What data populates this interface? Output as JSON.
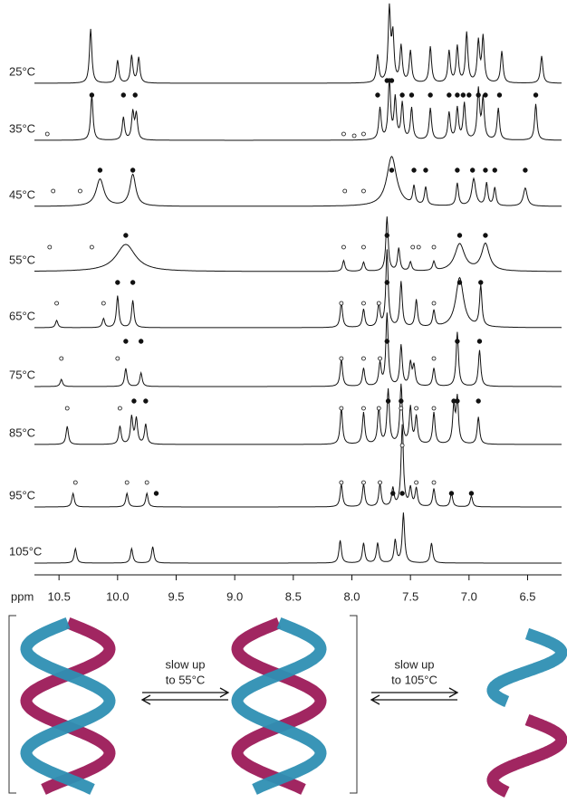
{
  "spectra_panel": {
    "axis": {
      "label": "ppm",
      "xlim": [
        10.71,
        6.21
      ],
      "xticks": [
        10.5,
        {
          "value": 10,
          "label": "10.0"
        },
        9.5,
        {
          "value": 9,
          "label": "9.0"
        },
        8.5,
        {
          "value": 8,
          "label": "8.0"
        },
        7.5,
        {
          "value": 7,
          "label": "7.0"
        },
        6.5
      ]
    },
    "spectra": [
      {
        "label": "25°C",
        "peaks": [
          [
            10.23,
            60
          ],
          [
            10.0,
            25
          ],
          [
            9.88,
            30
          ],
          [
            9.82,
            28
          ],
          [
            7.78,
            30
          ],
          [
            7.68,
            80
          ],
          [
            7.65,
            50
          ],
          [
            7.58,
            40
          ],
          [
            7.5,
            35
          ],
          [
            7.33,
            40
          ],
          [
            7.17,
            35
          ],
          [
            7.1,
            40
          ],
          [
            7.02,
            55
          ],
          [
            6.92,
            45
          ],
          [
            6.88,
            50
          ],
          [
            6.72,
            35
          ],
          [
            6.38,
            30
          ]
        ],
        "filled": [],
        "open": []
      },
      {
        "label": "35°C",
        "peaks": [
          [
            10.22,
            50
          ],
          [
            9.95,
            25
          ],
          [
            9.87,
            30
          ],
          [
            9.84,
            28
          ],
          [
            7.76,
            35
          ],
          [
            7.68,
            65
          ],
          [
            7.63,
            45
          ],
          [
            7.57,
            40
          ],
          [
            7.49,
            35
          ],
          [
            7.33,
            35
          ],
          [
            7.17,
            30
          ],
          [
            7.1,
            35
          ],
          [
            7.04,
            40
          ],
          [
            6.92,
            55
          ],
          [
            6.88,
            45
          ],
          [
            6.75,
            35
          ],
          [
            6.43,
            40
          ]
        ],
        "filled": [
          [
            10.22,
            50
          ],
          [
            9.95,
            50
          ],
          [
            9.85,
            50
          ],
          [
            7.78,
            50
          ],
          [
            7.7,
            66
          ],
          [
            7.66,
            66
          ],
          [
            7.57,
            50
          ],
          [
            7.49,
            50
          ],
          [
            7.33,
            50
          ],
          [
            7.17,
            50
          ],
          [
            7.1,
            50
          ],
          [
            7.05,
            50
          ],
          [
            7.0,
            50
          ],
          [
            6.92,
            50
          ],
          [
            6.86,
            50
          ],
          [
            6.74,
            50
          ],
          [
            6.43,
            50
          ]
        ],
        "open": [
          [
            10.6,
            7
          ],
          [
            8.07,
            7
          ],
          [
            7.98,
            5
          ],
          [
            7.9,
            7
          ]
        ]
      },
      {
        "label": "45°C",
        "peaks": [
          [
            10.15,
            30,
            0.04
          ],
          [
            9.87,
            35,
            0.03
          ],
          [
            7.66,
            55,
            0.05
          ],
          [
            7.47,
            20
          ],
          [
            7.37,
            20
          ],
          [
            7.1,
            25
          ],
          [
            6.96,
            30,
            0.02
          ],
          [
            6.85,
            25
          ],
          [
            6.78,
            20
          ],
          [
            6.52,
            20,
            0.02
          ]
        ],
        "filled": [
          [
            10.15,
            40
          ],
          [
            9.87,
            40
          ],
          [
            7.66,
            40
          ],
          [
            7.47,
            40
          ],
          [
            7.37,
            40
          ],
          [
            7.1,
            40
          ],
          [
            6.97,
            40
          ],
          [
            6.86,
            40
          ],
          [
            6.78,
            40
          ],
          [
            6.52,
            40
          ]
        ],
        "open": [
          [
            10.55,
            17
          ],
          [
            10.32,
            17
          ],
          [
            8.06,
            17
          ],
          [
            7.9,
            17
          ]
        ]
      },
      {
        "label": "55°C",
        "peaks": [
          [
            9.93,
            30,
            0.1
          ],
          [
            8.07,
            12
          ],
          [
            7.9,
            10
          ],
          [
            7.7,
            60
          ],
          [
            7.6,
            25
          ],
          [
            7.5,
            10
          ],
          [
            7.3,
            10
          ],
          [
            7.08,
            30,
            0.05
          ],
          [
            6.86,
            30,
            0.04
          ]
        ],
        "filled": [
          [
            9.93,
            40
          ],
          [
            7.7,
            40
          ],
          [
            7.08,
            40
          ],
          [
            6.86,
            40
          ]
        ],
        "open": [
          [
            10.58,
            27
          ],
          [
            10.22,
            27
          ],
          [
            8.07,
            27
          ],
          [
            7.9,
            27
          ],
          [
            7.48,
            27
          ],
          [
            7.43,
            27
          ],
          [
            7.3,
            27
          ]
        ]
      },
      {
        "label": "65°C",
        "peaks": [
          [
            10.52,
            8
          ],
          [
            10.12,
            10
          ],
          [
            10.0,
            35
          ],
          [
            9.87,
            30
          ],
          [
            8.09,
            28
          ],
          [
            7.9,
            20
          ],
          [
            7.77,
            25
          ],
          [
            7.7,
            85
          ],
          [
            7.58,
            50
          ],
          [
            7.45,
            30
          ],
          [
            7.3,
            18
          ],
          [
            7.08,
            55,
            0.04
          ],
          [
            6.9,
            45
          ]
        ],
        "filled": [
          [
            10.0,
            50
          ],
          [
            9.87,
            50
          ],
          [
            7.7,
            50
          ],
          [
            7.08,
            50
          ],
          [
            6.9,
            50
          ]
        ],
        "open": [
          [
            10.52,
            27
          ],
          [
            10.12,
            27
          ],
          [
            8.09,
            27
          ],
          [
            7.9,
            27
          ],
          [
            7.77,
            27
          ],
          [
            7.3,
            27
          ]
        ]
      },
      {
        "label": "75°C",
        "peaks": [
          [
            10.48,
            8
          ],
          [
            9.93,
            20
          ],
          [
            9.8,
            15
          ],
          [
            8.09,
            30
          ],
          [
            7.9,
            20
          ],
          [
            7.76,
            25
          ],
          [
            7.7,
            80
          ],
          [
            7.58,
            45
          ],
          [
            7.5,
            25
          ],
          [
            7.47,
            22
          ],
          [
            7.3,
            20
          ],
          [
            7.1,
            60
          ],
          [
            6.91,
            40
          ]
        ],
        "filled": [
          [
            9.93,
            50
          ],
          [
            9.8,
            50
          ],
          [
            7.7,
            50
          ],
          [
            7.1,
            50
          ],
          [
            6.91,
            50
          ]
        ],
        "open": [
          [
            10.48,
            31
          ],
          [
            10.0,
            31
          ],
          [
            8.09,
            31
          ],
          [
            7.9,
            31
          ],
          [
            7.76,
            31
          ],
          [
            7.3,
            31
          ]
        ]
      },
      {
        "label": "85°C",
        "peaks": [
          [
            10.43,
            20
          ],
          [
            9.98,
            20
          ],
          [
            9.88,
            30
          ],
          [
            9.84,
            28
          ],
          [
            9.76,
            22
          ],
          [
            8.09,
            40
          ],
          [
            7.9,
            35
          ],
          [
            7.77,
            40
          ],
          [
            7.69,
            60
          ],
          [
            7.58,
            65
          ],
          [
            7.5,
            40
          ],
          [
            7.45,
            30
          ],
          [
            7.3,
            35
          ],
          [
            7.13,
            40
          ],
          [
            7.1,
            50
          ],
          [
            6.92,
            30
          ]
        ],
        "filled": [
          [
            9.86,
            48
          ],
          [
            9.76,
            48
          ],
          [
            7.69,
            48
          ],
          [
            7.58,
            48
          ],
          [
            7.13,
            48
          ],
          [
            7.1,
            48
          ],
          [
            6.92,
            48
          ]
        ],
        "open": [
          [
            10.43,
            40
          ],
          [
            9.98,
            40
          ],
          [
            8.09,
            40
          ],
          [
            7.9,
            40
          ],
          [
            7.77,
            40
          ],
          [
            7.58,
            40
          ],
          [
            7.45,
            40
          ],
          [
            7.3,
            40
          ]
        ]
      },
      {
        "label": "95°C",
        "peaks": [
          [
            10.38,
            15
          ],
          [
            9.92,
            15
          ],
          [
            9.75,
            15
          ],
          [
            8.09,
            25
          ],
          [
            7.9,
            25
          ],
          [
            7.76,
            25
          ],
          [
            7.65,
            20
          ],
          [
            7.57,
            90
          ],
          [
            7.5,
            20
          ],
          [
            7.45,
            20
          ],
          [
            7.3,
            20
          ],
          [
            7.15,
            15
          ],
          [
            6.98,
            12
          ]
        ],
        "filled": [
          [
            9.67,
            15
          ],
          [
            7.65,
            15
          ],
          [
            7.57,
            15
          ],
          [
            7.15,
            15
          ],
          [
            6.98,
            15
          ]
        ],
        "open": [
          [
            10.36,
            27
          ],
          [
            9.92,
            27
          ],
          [
            9.75,
            27
          ],
          [
            8.09,
            27
          ],
          [
            7.9,
            27
          ],
          [
            7.76,
            27
          ],
          [
            7.57,
            68
          ],
          [
            7.45,
            27
          ],
          [
            7.3,
            27
          ]
        ]
      },
      {
        "label": "105°C",
        "peaks": [
          [
            10.36,
            16
          ],
          [
            9.88,
            16
          ],
          [
            9.7,
            18
          ],
          [
            8.1,
            25
          ],
          [
            7.9,
            22
          ],
          [
            7.78,
            22
          ],
          [
            7.63,
            25
          ],
          [
            7.56,
            55
          ],
          [
            7.32,
            22
          ]
        ],
        "filled": [],
        "open": []
      }
    ]
  },
  "scheme": {
    "arrows": [
      {
        "line1": "slow up",
        "line2": "to 55°C"
      },
      {
        "line1": "slow up",
        "line2": "to 105°C"
      }
    ]
  }
}
